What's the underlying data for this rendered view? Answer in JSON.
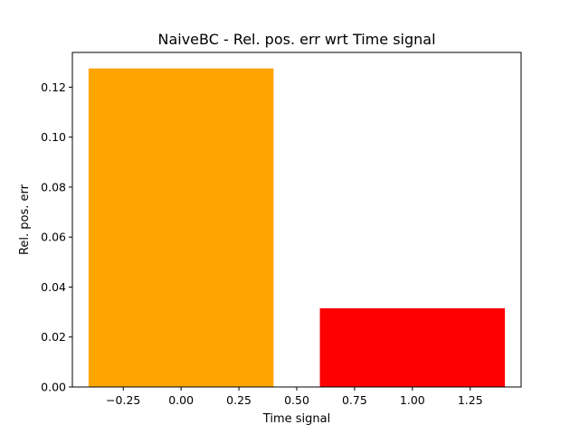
{
  "chart_data": {
    "type": "bar",
    "title": "NaiveBC - Rel. pos. err wrt Time signal",
    "xlabel": "Time signal",
    "ylabel": "Rel. pos. err",
    "bars": [
      {
        "x": 0.0,
        "width": 0.8,
        "value": 0.1275,
        "color": "#ffa500"
      },
      {
        "x": 1.0,
        "width": 0.8,
        "value": 0.0315,
        "color": "#ff0000"
      }
    ],
    "xlim": [
      -0.47,
      1.47
    ],
    "ylim": [
      0,
      0.1339
    ],
    "x_ticks": [
      -0.25,
      0.0,
      0.25,
      0.5,
      0.75,
      1.0,
      1.25
    ],
    "x_tick_labels": [
      "−0.25",
      "0.00",
      "0.25",
      "0.50",
      "0.75",
      "1.00",
      "1.25"
    ],
    "y_ticks": [
      0.0,
      0.02,
      0.04,
      0.06,
      0.08,
      0.1,
      0.12
    ],
    "y_tick_labels": [
      "0.00",
      "0.02",
      "0.04",
      "0.06",
      "0.08",
      "0.10",
      "0.12"
    ],
    "grid": false,
    "legend": "none"
  }
}
